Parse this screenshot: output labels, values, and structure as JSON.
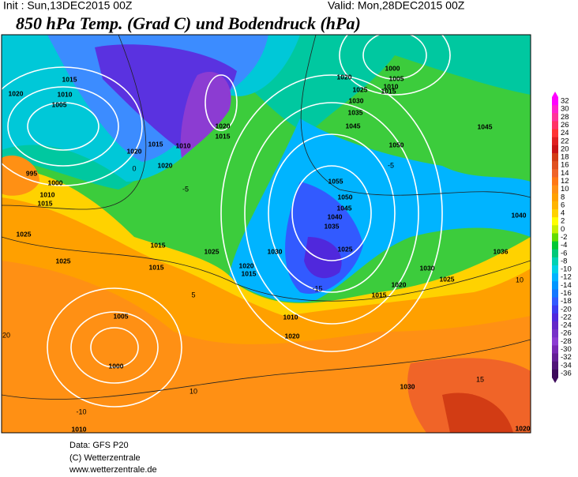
{
  "header": {
    "init": "Init : Sun,13DEC2015 00Z",
    "valid": "Valid: Mon,28DEC2015 00Z",
    "title": "850 hPa Temp. (Grad C) und Bodendruck (hPa)"
  },
  "colorbar": {
    "levels": [
      32,
      30,
      28,
      26,
      24,
      22,
      20,
      18,
      16,
      14,
      12,
      10,
      8,
      6,
      4,
      2,
      0,
      -2,
      -4,
      -6,
      -8,
      -10,
      -12,
      -14,
      -16,
      -18,
      -20,
      -22,
      -24,
      -26,
      -28,
      -30,
      -32,
      -34,
      -36
    ],
    "colors": [
      "#ff00ff",
      "#ff22cc",
      "#ff3399",
      "#ff3366",
      "#ff3333",
      "#e02020",
      "#c81414",
      "#d23c14",
      "#e0501e",
      "#f06428",
      "#ff7814",
      "#ff9014",
      "#ffa000",
      "#ffb400",
      "#ffd200",
      "#ffff00",
      "#c8f000",
      "#64dc00",
      "#00c832",
      "#00c878",
      "#00d2b4",
      "#00d2e6",
      "#00b4ff",
      "#0096ff",
      "#1478ff",
      "#325aff",
      "#3c3cf0",
      "#5028dc",
      "#6428c8",
      "#7832c8",
      "#8c3cd2",
      "#7828b4",
      "#641e96",
      "#501478",
      "#3c0a5a"
    ]
  },
  "map": {
    "pressure_labels": [
      "1015",
      "1020",
      "1010",
      "1005",
      "1020",
      "1015",
      "1020",
      "1010",
      "1020",
      "1015",
      "995",
      "1000",
      "1010",
      "1015",
      "1025",
      "1025",
      "1015",
      "1015",
      "1025",
      "1020",
      "1015",
      "1030",
      "1025",
      "1035",
      "1040",
      "1045",
      "1050",
      "1055",
      "1050",
      "1045",
      "1035",
      "1030",
      "1025",
      "1020",
      "1000",
      "1005",
      "1010",
      "1015",
      "1045",
      "1040",
      "1036",
      "1030",
      "1025",
      "1020",
      "1015",
      "1010",
      "1020",
      "1005",
      "1000",
      "1030",
      "1010",
      "1020"
    ],
    "temp_labels": [
      "0",
      "-5",
      "-5",
      "5",
      "-15",
      "10",
      "-10",
      "15",
      "20",
      "10"
    ]
  },
  "footer": {
    "data": "Data: GFS P20",
    "copyright": "(C) Wetterzentrale",
    "url": "www.wetterzentrale.de"
  }
}
